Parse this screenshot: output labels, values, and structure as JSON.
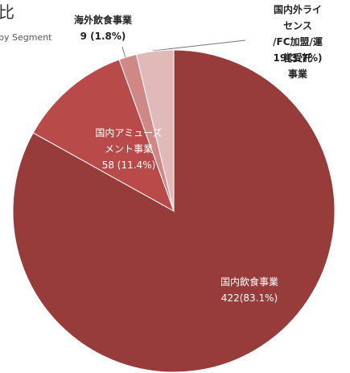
{
  "chart_data": {
    "type": "pie",
    "title": "比",
    "subtitle": "by Segment",
    "categories": [
      "国内飲食事業",
      "国内アミューズ\nメント事業",
      "海外飲食事業",
      "国内外ライセンス\n/FC加盟/運営受託\n事業"
    ],
    "values": [
      422,
      58,
      9,
      19
    ],
    "value_labels": [
      "422(83.1%)",
      "58 (11.4%)",
      "9 (1.8%)",
      "19(3.7%)"
    ],
    "colors": [
      "#983c3b",
      "#b84b49",
      "#d08887",
      "#e2b9b9"
    ]
  }
}
